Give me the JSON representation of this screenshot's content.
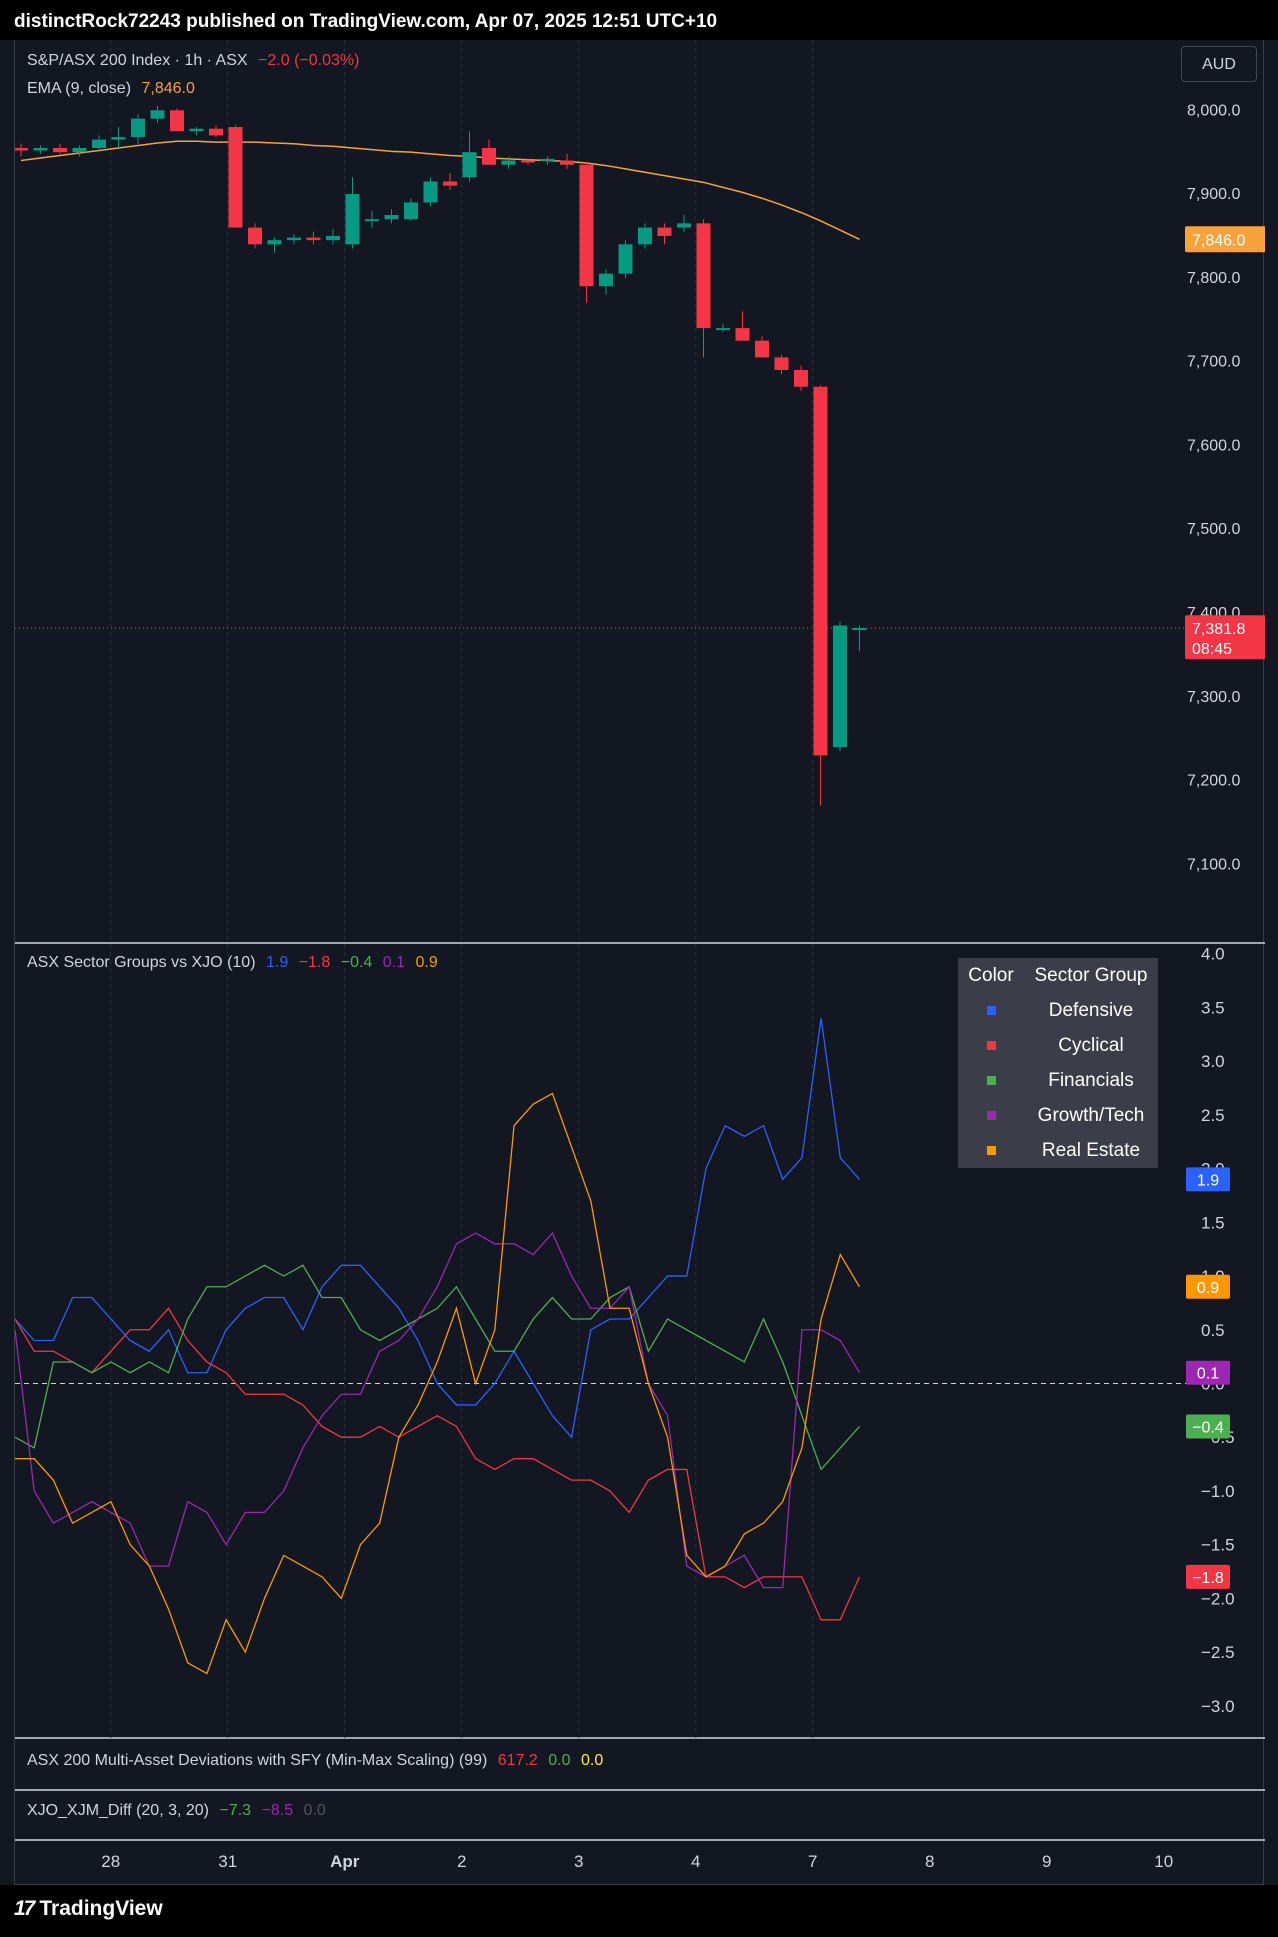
{
  "publish_line": "distinctRock72243 published on TradingView.com, Apr 07, 2025 12:51 UTC+10",
  "currency": "AUD",
  "footer_brand": "TradingView",
  "price_pane": {
    "symbol_line": "S&P/ASX 200 Index · 1h · ASX",
    "change": "−2.0 (−0.03%)",
    "ema_label": "EMA (9, close)",
    "ema_value": "7,846.0",
    "last_price_label": "7,381.8",
    "countdown": "08:45",
    "ema_price_label": "7,846.0"
  },
  "sector_pane": {
    "title": "ASX Sector Groups vs XJO (10)",
    "values": [
      "1.9",
      "−1.8",
      "−0.4",
      "0.1",
      "0.9"
    ],
    "table_header": [
      "Color",
      "Sector Group"
    ],
    "table_rows": [
      "Defensive",
      "Cyclical",
      "Financials",
      "Growth/Tech",
      "Real Estate"
    ]
  },
  "mad_pane": {
    "title": "ASX 200 Multi-Asset Deviations with SFY (Min-Max Scaling) (99)",
    "values": [
      "617.2",
      "0.0",
      "0.0"
    ]
  },
  "diff_pane": {
    "title": "XJO_XJM_Diff (20, 3, 20)",
    "values": [
      "−7.3",
      "−8.5",
      "0.0"
    ]
  },
  "colors": {
    "up": "#089981",
    "down": "#f23645",
    "ema": "#f7a23a",
    "defensive": "#2962ff",
    "cyclical": "#f23645",
    "financials": "#4caf50",
    "growth": "#9c27b0",
    "realestate": "#ff9800"
  },
  "chart_data": [
    {
      "type": "candlestick",
      "title": "S&P/ASX 200 Index · 1h · ASX",
      "ylim": [
        7030,
        8060
      ],
      "y_ticks": [
        "8,000.0",
        "7,900.0",
        "7,800.0",
        "7,700.0",
        "7,600.0",
        "7,500.0",
        "7,400.0",
        "7,300.0",
        "7,200.0",
        "7,100.0"
      ],
      "x_ticks": [
        "28",
        "31",
        "Apr",
        "2",
        "3",
        "4",
        "7",
        "8",
        "9",
        "10"
      ],
      "candles": [
        [
          7955,
          7960,
          7945,
          7952
        ],
        [
          7952,
          7958,
          7948,
          7955
        ],
        [
          7955,
          7960,
          7948,
          7950
        ],
        [
          7950,
          7958,
          7945,
          7955
        ],
        [
          7955,
          7970,
          7950,
          7965
        ],
        [
          7965,
          7980,
          7955,
          7968
        ],
        [
          7968,
          7995,
          7960,
          7990
        ],
        [
          7990,
          8005,
          7985,
          8000
        ],
        [
          8000,
          8002,
          7975,
          7975
        ],
        [
          7975,
          7980,
          7970,
          7978
        ],
        [
          7978,
          7982,
          7968,
          7970
        ],
        [
          7980,
          7982,
          7860,
          7860
        ],
        [
          7860,
          7865,
          7835,
          7840
        ],
        [
          7840,
          7848,
          7830,
          7845
        ],
        [
          7845,
          7852,
          7840,
          7848
        ],
        [
          7848,
          7855,
          7840,
          7845
        ],
        [
          7845,
          7858,
          7840,
          7850
        ],
        [
          7840,
          7920,
          7835,
          7900
        ],
        [
          7870,
          7880,
          7860,
          7870
        ],
        [
          7870,
          7882,
          7865,
          7875
        ],
        [
          7870,
          7895,
          7868,
          7890
        ],
        [
          7890,
          7920,
          7885,
          7915
        ],
        [
          7915,
          7925,
          7905,
          7910
        ],
        [
          7920,
          7975,
          7915,
          7950
        ],
        [
          7955,
          7965,
          7935,
          7935
        ],
        [
          7935,
          7945,
          7930,
          7940
        ],
        [
          7940,
          7942,
          7935,
          7938
        ],
        [
          7940,
          7945,
          7935,
          7942
        ],
        [
          7940,
          7948,
          7930,
          7935
        ],
        [
          7935,
          7938,
          7770,
          7790
        ],
        [
          7790,
          7810,
          7780,
          7805
        ],
        [
          7805,
          7845,
          7800,
          7840
        ],
        [
          7840,
          7865,
          7835,
          7860
        ],
        [
          7860,
          7865,
          7840,
          7850
        ],
        [
          7860,
          7875,
          7855,
          7865
        ],
        [
          7865,
          7870,
          7705,
          7740
        ],
        [
          7740,
          7745,
          7735,
          7740
        ],
        [
          7740,
          7760,
          7725,
          7725
        ],
        [
          7725,
          7730,
          7705,
          7705
        ],
        [
          7705,
          7708,
          7685,
          7690
        ],
        [
          7690,
          7695,
          7665,
          7670
        ],
        [
          7670,
          7672,
          7170,
          7230
        ],
        [
          7240,
          7390,
          7235,
          7385
        ],
        [
          7382,
          7385,
          7355,
          7382
        ]
      ],
      "ema": [
        7940,
        7943,
        7946,
        7949,
        7952,
        7955,
        7958,
        7961,
        7963,
        7963,
        7962,
        7962,
        7962,
        7961,
        7960,
        7958,
        7957,
        7955,
        7953,
        7951,
        7950,
        7948,
        7946,
        7945,
        7943,
        7942,
        7941,
        7940,
        7939,
        7937,
        7934,
        7930,
        7926,
        7922,
        7918,
        7914,
        7908,
        7902,
        7895,
        7887,
        7878,
        7868,
        7857,
        7846
      ]
    },
    {
      "type": "line",
      "title": "ASX Sector Groups vs XJO (10)",
      "ylim": [
        -3.3,
        4.1
      ],
      "y_ticks": [
        "4.0",
        "3.5",
        "3.0",
        "2.5",
        "2.0",
        "1.5",
        "1.0",
        "0.5",
        "0.0",
        "−0.5",
        "−1.0",
        "−1.5",
        "−2.0",
        "−2.5",
        "−3.0"
      ],
      "series": [
        {
          "name": "Defensive",
          "values": [
            0.6,
            0.4,
            0.4,
            0.8,
            0.8,
            0.6,
            0.4,
            0.3,
            0.5,
            0.1,
            0.1,
            0.5,
            0.7,
            0.8,
            0.8,
            0.5,
            0.9,
            1.1,
            1.1,
            0.9,
            0.7,
            0.4,
            0.0,
            -0.2,
            -0.2,
            0.0,
            0.3,
            0.0,
            -0.3,
            -0.5,
            0.5,
            0.6,
            0.6,
            0.8,
            1.0,
            1.0,
            2.0,
            2.4,
            2.3,
            2.4,
            1.9,
            2.1,
            3.4,
            2.1,
            1.9
          ]
        },
        {
          "name": "Cyclical",
          "values": [
            0.6,
            0.3,
            0.3,
            0.2,
            0.1,
            0.3,
            0.5,
            0.5,
            0.7,
            0.4,
            0.2,
            0.1,
            -0.1,
            -0.1,
            -0.1,
            -0.2,
            -0.4,
            -0.5,
            -0.5,
            -0.4,
            -0.5,
            -0.4,
            -0.3,
            -0.4,
            -0.7,
            -0.8,
            -0.7,
            -0.7,
            -0.8,
            -0.9,
            -0.9,
            -1.0,
            -1.2,
            -0.9,
            -0.8,
            -0.8,
            -1.8,
            -1.8,
            -1.9,
            -1.8,
            -1.8,
            -1.8,
            -2.2,
            -2.2,
            -1.8
          ]
        },
        {
          "name": "Financials",
          "values": [
            -0.5,
            -0.6,
            0.2,
            0.2,
            0.1,
            0.2,
            0.1,
            0.2,
            0.1,
            0.6,
            0.9,
            0.9,
            1.0,
            1.1,
            1.0,
            1.1,
            0.8,
            0.8,
            0.5,
            0.4,
            0.5,
            0.6,
            0.7,
            0.9,
            0.6,
            0.3,
            0.3,
            0.6,
            0.8,
            0.6,
            0.6,
            0.8,
            0.9,
            0.3,
            0.6,
            0.5,
            0.4,
            0.3,
            0.2,
            0.6,
            0.2,
            -0.3,
            -0.8,
            -0.6,
            -0.4
          ]
        },
        {
          "name": "Growth/Tech",
          "values": [
            0.5,
            -1.0,
            -1.3,
            -1.2,
            -1.1,
            -1.2,
            -1.3,
            -1.7,
            -1.7,
            -1.1,
            -1.2,
            -1.5,
            -1.2,
            -1.2,
            -1.0,
            -0.6,
            -0.3,
            -0.1,
            -0.1,
            0.3,
            0.4,
            0.6,
            0.9,
            1.3,
            1.4,
            1.3,
            1.3,
            1.2,
            1.4,
            1.0,
            0.7,
            0.7,
            0.9,
            0.0,
            -0.3,
            -1.7,
            -1.8,
            -1.7,
            -1.6,
            -1.9,
            -1.9,
            0.5,
            0.5,
            0.4,
            0.1
          ]
        },
        {
          "name": "Real Estate",
          "values": [
            -0.7,
            -0.7,
            -0.9,
            -1.3,
            -1.2,
            -1.1,
            -1.5,
            -1.7,
            -2.1,
            -2.6,
            -2.7,
            -2.2,
            -2.5,
            -2.0,
            -1.6,
            -1.7,
            -1.8,
            -2.0,
            -1.5,
            -1.3,
            -0.5,
            -0.2,
            0.2,
            0.7,
            0.0,
            0.5,
            2.4,
            2.6,
            2.7,
            2.2,
            1.7,
            0.7,
            0.7,
            0.0,
            -0.5,
            -1.6,
            -1.8,
            -1.7,
            -1.4,
            -1.3,
            -1.1,
            -0.6,
            0.6,
            1.2,
            0.9
          ]
        }
      ]
    },
    {
      "type": "line",
      "title": "ASX 200 Multi-Asset Deviations with SFY (Min-Max Scaling) (99)",
      "series": [
        {
          "name": "",
          "values": [
            617.2,
            0.0,
            0.0
          ]
        }
      ]
    },
    {
      "type": "line",
      "title": "XJO_XJM_Diff (20, 3, 20)",
      "series": [
        {
          "name": "",
          "values": [
            -7.3,
            -8.5,
            0.0
          ]
        }
      ]
    }
  ]
}
